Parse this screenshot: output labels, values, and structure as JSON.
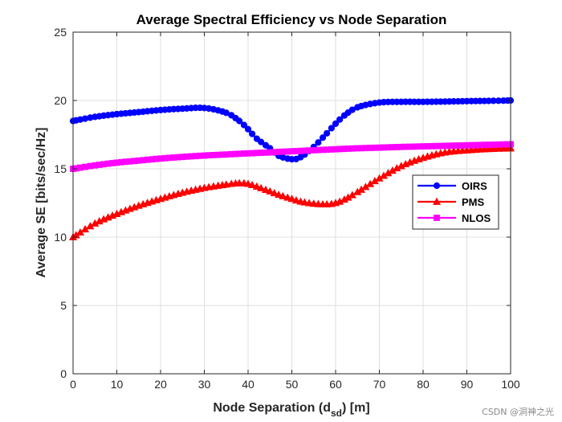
{
  "chart_data": {
    "type": "line",
    "title": "Average Spectral Efficiency vs Node Separation",
    "xlabel": "Node Separation (d",
    "xlabel_sub": "sd",
    "xlabel_suffix": ") [m]",
    "ylabel": "Average SE [bits/sec/Hz]",
    "xlim": [
      0,
      100
    ],
    "ylim": [
      0,
      25
    ],
    "xticks": [
      0,
      10,
      20,
      30,
      40,
      50,
      60,
      70,
      80,
      90,
      100
    ],
    "yticks": [
      0,
      5,
      10,
      15,
      20,
      25
    ],
    "grid": true,
    "legend_position": "right-middle",
    "x": [
      0,
      5,
      10,
      15,
      20,
      25,
      30,
      35,
      38,
      40,
      42,
      45,
      47,
      50,
      52,
      55,
      58,
      60,
      62,
      65,
      70,
      75,
      80,
      85,
      90,
      95,
      100
    ],
    "series": [
      {
        "name": "OIRS",
        "color": "#0000ff",
        "marker": "circle",
        "values": [
          18.5,
          18.8,
          19.0,
          19.15,
          19.3,
          19.4,
          19.45,
          19.1,
          18.5,
          17.9,
          17.2,
          16.5,
          15.95,
          15.7,
          15.85,
          16.6,
          17.6,
          18.3,
          18.9,
          19.5,
          19.85,
          19.9,
          19.9,
          19.92,
          19.95,
          19.97,
          20.0
        ]
      },
      {
        "name": "PMS",
        "color": "#ff0000",
        "marker": "triangle",
        "values": [
          10.0,
          11.0,
          11.7,
          12.3,
          12.8,
          13.25,
          13.6,
          13.85,
          13.95,
          13.9,
          13.7,
          13.35,
          13.1,
          12.8,
          12.6,
          12.45,
          12.4,
          12.5,
          12.75,
          13.3,
          14.3,
          15.2,
          15.8,
          16.2,
          16.35,
          16.45,
          16.5
        ]
      },
      {
        "name": "NLOS",
        "color": "#ff00ff",
        "marker": "square",
        "values": [
          15.0,
          15.25,
          15.45,
          15.6,
          15.75,
          15.87,
          15.97,
          16.05,
          16.1,
          16.13,
          16.16,
          16.2,
          16.24,
          16.28,
          16.31,
          16.36,
          16.4,
          16.43,
          16.46,
          16.5,
          16.55,
          16.6,
          16.64,
          16.68,
          16.72,
          16.76,
          16.8
        ]
      }
    ]
  },
  "watermark": "CSDN @洞神之光"
}
